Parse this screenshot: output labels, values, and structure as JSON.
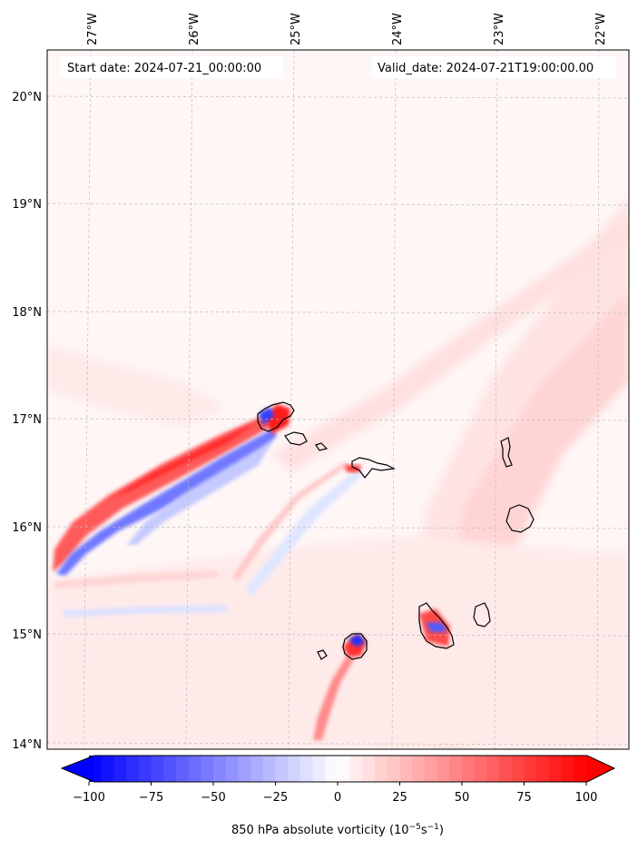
{
  "header": {
    "start_date": "Start date: 2024-07-21_00:00:00",
    "valid_date": "Valid_date: 2024-07-21T19:00:00.00"
  },
  "map": {
    "lon_labels": [
      "27°W",
      "26°W",
      "25°W",
      "24°W",
      "23°W",
      "22°W"
    ],
    "lat_labels": [
      "20°N",
      "19°N",
      "18°N",
      "17°N",
      "16°N",
      "15°N",
      "14°N"
    ],
    "lon_values": [
      -27,
      -26,
      -25,
      -24,
      -23,
      -22
    ],
    "lat_values": [
      20,
      19,
      18,
      17,
      16,
      15,
      14
    ],
    "lon_range": [
      -27.4,
      -21.8
    ],
    "lat_range": [
      13.95,
      20.4
    ]
  },
  "colorbar": {
    "label": "850 hPa absolute vorticity (10",
    "label_exp1": "−5",
    "label_mid": "s",
    "label_exp2": "−1",
    "label_end": ")",
    "ticks": [
      "−100",
      "−75",
      "−50",
      "−25",
      "0",
      "25",
      "50",
      "75",
      "100"
    ],
    "tick_values": [
      -100,
      -75,
      -50,
      -25,
      0,
      25,
      50,
      75,
      100
    ],
    "range": [
      -100,
      100
    ],
    "extend": "both",
    "colormap": "bwr",
    "colors": {
      "min": "#0000ff",
      "mid": "#ffffff",
      "max": "#ff0000"
    }
  }
}
